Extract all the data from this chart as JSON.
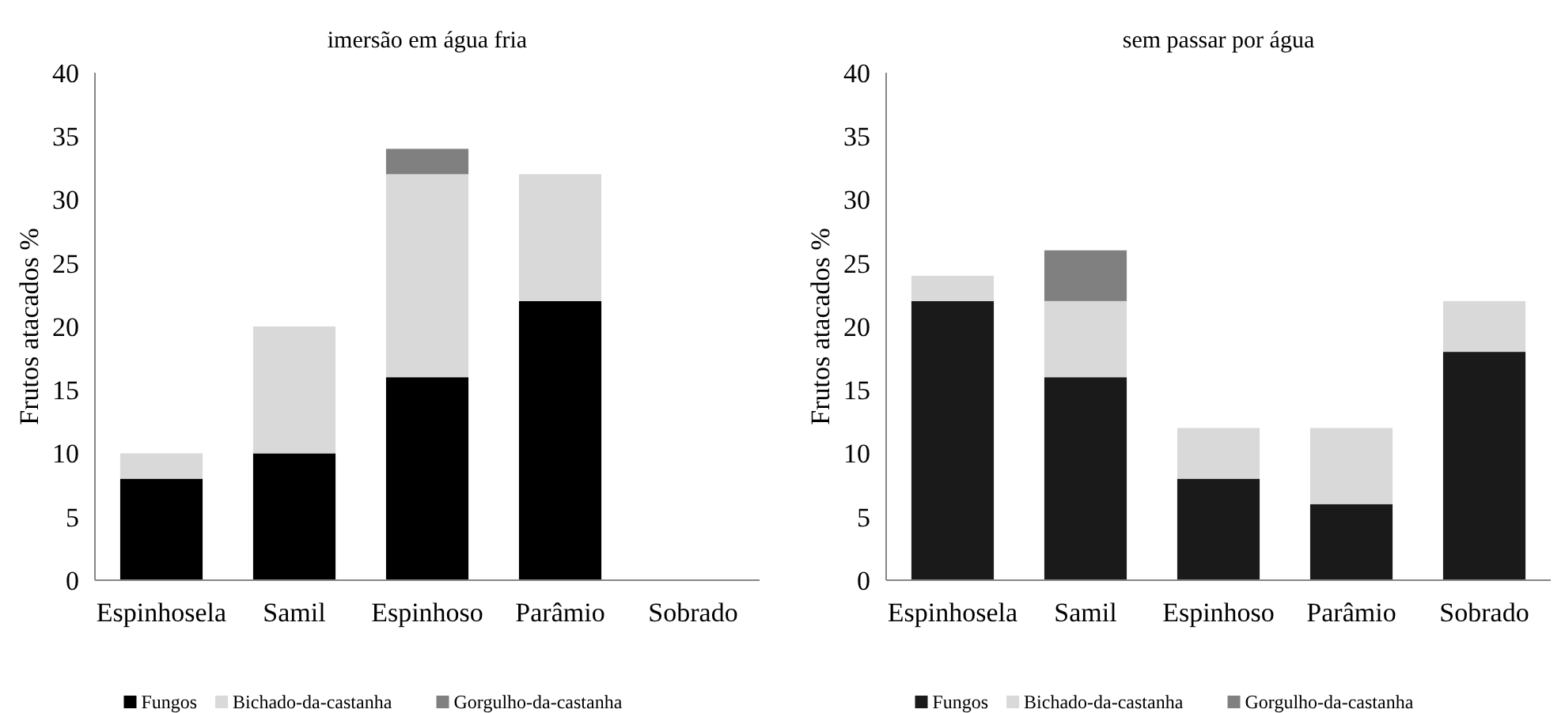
{
  "chart_data": [
    {
      "type": "bar",
      "title": "imersão  em água fria",
      "ylabel": "Frutos  atacados %",
      "categories": [
        "Espinhosela",
        "Samil",
        "Espinhoso",
        "Parâmio",
        "Sobrado"
      ],
      "stacked": true,
      "ylim": [
        0,
        40
      ],
      "yticks": [
        0,
        5,
        10,
        15,
        20,
        25,
        30,
        35,
        40
      ],
      "grid": false,
      "legend": "bottom",
      "series": [
        {
          "name": "Fungos",
          "color": "#000000",
          "values": [
            8,
            10,
            16,
            22,
            0
          ]
        },
        {
          "name": "Bichado-da-castanha",
          "color": "#d9d9d9",
          "values": [
            2,
            10,
            16,
            10,
            0
          ]
        },
        {
          "name": "Gorgulho-da-castanha",
          "color": "#808080",
          "values": [
            0,
            0,
            2,
            0,
            0
          ]
        }
      ]
    },
    {
      "type": "bar",
      "title": "sem passar por água",
      "ylabel": "Frutos  atacados %",
      "categories": [
        "Espinhosela",
        "Samil",
        "Espinhoso",
        "Parâmio",
        "Sobrado"
      ],
      "stacked": true,
      "ylim": [
        0,
        40
      ],
      "yticks": [
        0,
        5,
        10,
        15,
        20,
        25,
        30,
        35,
        40
      ],
      "grid": false,
      "legend": "bottom",
      "series": [
        {
          "name": "Fungos",
          "color": "#1a1a1a",
          "values": [
            22,
            16,
            8,
            6,
            18
          ]
        },
        {
          "name": "Bichado-da-castanha",
          "color": "#d9d9d9",
          "values": [
            2,
            6,
            4,
            6,
            4
          ]
        },
        {
          "name": "Gorgulho-da-castanha",
          "color": "#808080",
          "values": [
            0,
            4,
            0,
            0,
            0
          ]
        }
      ]
    }
  ]
}
